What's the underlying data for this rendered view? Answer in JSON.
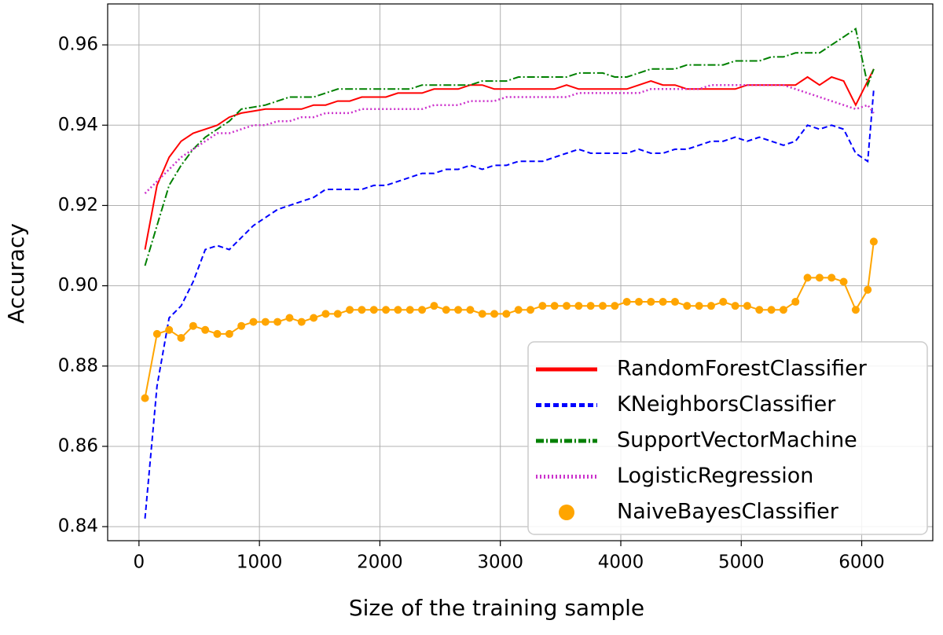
{
  "chart_data": {
    "type": "line",
    "x_label": "Size of the training sample",
    "y_label": "Accuracy",
    "x": [
      50,
      150,
      250,
      350,
      450,
      550,
      650,
      750,
      850,
      950,
      1050,
      1150,
      1250,
      1350,
      1450,
      1550,
      1650,
      1750,
      1850,
      1950,
      2050,
      2150,
      2250,
      2350,
      2450,
      2550,
      2650,
      2750,
      2850,
      2950,
      3050,
      3150,
      3250,
      3350,
      3450,
      3550,
      3650,
      3750,
      3850,
      3950,
      4050,
      4150,
      4250,
      4350,
      4450,
      4550,
      4650,
      4750,
      4850,
      4950,
      5050,
      5150,
      5250,
      5350,
      5450,
      5550,
      5650,
      5750,
      5850,
      5950,
      6050,
      6100
    ],
    "series": [
      {
        "name": "RandomForestClassifier",
        "color": "#ff0000",
        "linestyle": "solid",
        "values": [
          0.909,
          0.925,
          0.932,
          0.936,
          0.938,
          0.939,
          0.94,
          0.942,
          0.943,
          0.9435,
          0.944,
          0.944,
          0.944,
          0.944,
          0.945,
          0.945,
          0.946,
          0.946,
          0.947,
          0.947,
          0.947,
          0.948,
          0.948,
          0.948,
          0.949,
          0.949,
          0.949,
          0.95,
          0.95,
          0.949,
          0.949,
          0.949,
          0.949,
          0.949,
          0.949,
          0.95,
          0.949,
          0.949,
          0.949,
          0.949,
          0.949,
          0.95,
          0.951,
          0.95,
          0.95,
          0.949,
          0.949,
          0.949,
          0.949,
          0.949,
          0.95,
          0.95,
          0.95,
          0.95,
          0.95,
          0.952,
          0.95,
          0.952,
          0.951,
          0.945,
          0.951,
          0.954
        ]
      },
      {
        "name": "KNeighborsClassifier",
        "color": "#0000ff",
        "linestyle": "dashed",
        "values": [
          0.842,
          0.875,
          0.892,
          0.895,
          0.901,
          0.909,
          0.91,
          0.909,
          0.912,
          0.915,
          0.917,
          0.919,
          0.92,
          0.921,
          0.922,
          0.924,
          0.924,
          0.924,
          0.924,
          0.925,
          0.925,
          0.926,
          0.927,
          0.928,
          0.928,
          0.929,
          0.929,
          0.93,
          0.929,
          0.93,
          0.93,
          0.931,
          0.931,
          0.931,
          0.932,
          0.933,
          0.934,
          0.933,
          0.933,
          0.933,
          0.933,
          0.934,
          0.933,
          0.933,
          0.934,
          0.934,
          0.935,
          0.936,
          0.936,
          0.937,
          0.936,
          0.937,
          0.936,
          0.935,
          0.936,
          0.94,
          0.939,
          0.94,
          0.939,
          0.933,
          0.931,
          0.949
        ]
      },
      {
        "name": "SupportVectorMachine",
        "color": "#008000",
        "linestyle": "dashdot",
        "values": [
          0.905,
          0.915,
          0.925,
          0.93,
          0.934,
          0.937,
          0.939,
          0.941,
          0.944,
          0.9445,
          0.945,
          0.946,
          0.947,
          0.947,
          0.947,
          0.948,
          0.949,
          0.949,
          0.949,
          0.949,
          0.949,
          0.949,
          0.949,
          0.95,
          0.95,
          0.95,
          0.95,
          0.95,
          0.951,
          0.951,
          0.951,
          0.952,
          0.952,
          0.952,
          0.952,
          0.952,
          0.953,
          0.953,
          0.953,
          0.952,
          0.952,
          0.953,
          0.954,
          0.954,
          0.954,
          0.955,
          0.955,
          0.955,
          0.955,
          0.956,
          0.956,
          0.956,
          0.957,
          0.957,
          0.958,
          0.958,
          0.958,
          0.96,
          0.962,
          0.964,
          0.95,
          0.954
        ]
      },
      {
        "name": "LogisticRegression",
        "color": "#cc33cc",
        "linestyle": "dotted",
        "values": [
          0.923,
          0.926,
          0.929,
          0.932,
          0.934,
          0.936,
          0.938,
          0.938,
          0.939,
          0.94,
          0.94,
          0.941,
          0.941,
          0.942,
          0.942,
          0.943,
          0.943,
          0.943,
          0.944,
          0.944,
          0.944,
          0.944,
          0.944,
          0.944,
          0.945,
          0.945,
          0.945,
          0.946,
          0.946,
          0.946,
          0.947,
          0.947,
          0.947,
          0.947,
          0.947,
          0.947,
          0.948,
          0.948,
          0.948,
          0.948,
          0.948,
          0.948,
          0.949,
          0.949,
          0.949,
          0.949,
          0.949,
          0.95,
          0.95,
          0.95,
          0.95,
          0.95,
          0.95,
          0.95,
          0.949,
          0.948,
          0.947,
          0.946,
          0.945,
          0.944,
          0.945,
          0.943
        ]
      },
      {
        "name": "NaiveBayesClassifier",
        "color": "#ffa500",
        "linestyle": "marker",
        "values": [
          0.872,
          0.888,
          0.889,
          0.887,
          0.89,
          0.889,
          0.888,
          0.888,
          0.89,
          0.891,
          0.891,
          0.891,
          0.892,
          0.891,
          0.892,
          0.893,
          0.893,
          0.894,
          0.894,
          0.894,
          0.894,
          0.894,
          0.894,
          0.894,
          0.895,
          0.894,
          0.894,
          0.894,
          0.893,
          0.893,
          0.893,
          0.894,
          0.894,
          0.895,
          0.895,
          0.895,
          0.895,
          0.895,
          0.895,
          0.895,
          0.896,
          0.896,
          0.896,
          0.896,
          0.896,
          0.895,
          0.895,
          0.895,
          0.896,
          0.895,
          0.895,
          0.894,
          0.894,
          0.894,
          0.896,
          0.902,
          0.902,
          0.902,
          0.901,
          0.894,
          0.899,
          0.911
        ]
      }
    ],
    "xlim": [
      -260,
      6590
    ],
    "ylim": [
      0.8365,
      0.9702
    ],
    "xticks": [
      0,
      1000,
      2000,
      3000,
      4000,
      5000,
      6000
    ],
    "yticks": [
      0.84,
      0.86,
      0.88,
      {
        "value": 0.9,
        "label": "0.90"
      },
      0.92,
      0.94,
      0.96
    ],
    "grid": true,
    "legend": "lower right"
  }
}
